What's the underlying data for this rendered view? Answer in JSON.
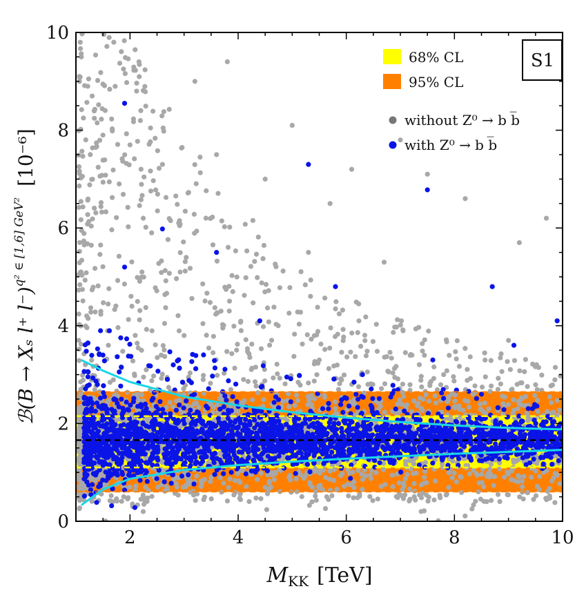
{
  "chart_data": {
    "type": "scatter",
    "title": "",
    "xlabel_main": "M",
    "xlabel_sub": "KK",
    "xlabel_unit": "[TeV]",
    "ylabel_text": "ℬ(B → Xₛ l⁺ l⁻)",
    "ylabel_sup": "q² ∈ [1,6] GeV²",
    "ylabel_scale": "[10⁻⁶]",
    "xlim": [
      1,
      10
    ],
    "ylim": [
      0,
      10
    ],
    "x_ticks": [
      2,
      4,
      6,
      8,
      10
    ],
    "y_ticks": [
      0,
      2,
      4,
      6,
      8,
      10
    ],
    "scenario_label": "S1",
    "central_value": 1.66,
    "cl68_band": [
      1.1,
      2.15
    ],
    "cl95_band": [
      0.6,
      2.65
    ],
    "legend": {
      "cl68": "68% CL",
      "cl95": "95% CL",
      "without": "without Z⁰ → b b̅",
      "with": "with Z⁰ → b b̅"
    },
    "series": [
      {
        "name": "without Z0 -> b bbar",
        "color": "#a8a8a8",
        "description": "gray scatter points",
        "sample_points": [
          [
            1.1,
            9.5
          ],
          [
            1.3,
            8.7
          ],
          [
            1.5,
            7.9
          ],
          [
            1.7,
            9.8
          ],
          [
            1.8,
            6.9
          ],
          [
            2.0,
            7.7
          ],
          [
            2.2,
            8.4
          ],
          [
            2.4,
            5.9
          ],
          [
            2.6,
            7.3
          ],
          [
            2.9,
            6.1
          ],
          [
            3.2,
            9.0
          ],
          [
            3.6,
            7.5
          ],
          [
            3.8,
            9.4
          ],
          [
            4.5,
            7.0
          ],
          [
            5.0,
            8.1
          ],
          [
            5.3,
            5.5
          ],
          [
            5.7,
            6.5
          ],
          [
            6.1,
            7.2
          ],
          [
            6.7,
            5.3
          ],
          [
            7.0,
            7.8
          ],
          [
            7.5,
            7.1
          ],
          [
            8.2,
            6.6
          ],
          [
            9.2,
            5.7
          ],
          [
            9.7,
            6.2
          ],
          [
            1.2,
            4.2
          ],
          [
            1.6,
            3.6
          ],
          [
            2.3,
            3.1
          ],
          [
            3.0,
            3.8
          ],
          [
            4.1,
            2.9
          ],
          [
            5.5,
            3.3
          ],
          [
            6.4,
            2.8
          ],
          [
            7.8,
            3.0
          ],
          [
            9.0,
            3.7
          ],
          [
            1.4,
            0.9
          ],
          [
            2.0,
            0.7
          ],
          [
            3.5,
            0.9
          ]
        ]
      },
      {
        "name": "with Z0 -> b bbar",
        "color": "#0a14e6",
        "description": "blue scatter points",
        "sample_points": [
          [
            1.9,
            8.55
          ],
          [
            5.3,
            7.3
          ],
          [
            7.5,
            6.78
          ],
          [
            2.6,
            5.98
          ],
          [
            3.6,
            5.5
          ],
          [
            1.9,
            5.2
          ],
          [
            5.8,
            4.8
          ],
          [
            8.7,
            4.8
          ],
          [
            4.4,
            4.1
          ],
          [
            9.1,
            3.6
          ],
          [
            9.9,
            4.1
          ],
          [
            1.5,
            3.4
          ],
          [
            2.8,
            3.2
          ],
          [
            4.9,
            2.95
          ],
          [
            6.3,
            3.0
          ],
          [
            7.6,
            3.3
          ],
          [
            8.5,
            2.6
          ],
          [
            3.9,
            2.55
          ],
          [
            1.3,
            1.6
          ],
          [
            2.5,
            1.5
          ],
          [
            3.3,
            1.7
          ],
          [
            4.6,
            1.6
          ],
          [
            5.9,
            1.55
          ],
          [
            7.2,
            1.7
          ],
          [
            8.8,
            1.5
          ],
          [
            9.6,
            1.3
          ],
          [
            1.6,
            0.95
          ],
          [
            2.7,
            1.0
          ],
          [
            4.3,
            1.2
          ],
          [
            6.5,
            1.3
          ]
        ]
      }
    ],
    "envelope_curves": {
      "color": "#19d7e6",
      "upper": [
        [
          1.1,
          3.3
        ],
        [
          1.5,
          3.08
        ],
        [
          2.0,
          2.85
        ],
        [
          3.0,
          2.55
        ],
        [
          4.0,
          2.37
        ],
        [
          5.0,
          2.23
        ],
        [
          6.0,
          2.12
        ],
        [
          7.0,
          2.03
        ],
        [
          8.0,
          1.96
        ],
        [
          9.0,
          1.91
        ],
        [
          10.0,
          1.88
        ]
      ],
      "lower": [
        [
          1.1,
          0.33
        ],
        [
          1.5,
          0.65
        ],
        [
          2.0,
          0.87
        ],
        [
          3.0,
          1.05
        ],
        [
          4.0,
          1.15
        ],
        [
          5.0,
          1.22
        ],
        [
          6.0,
          1.28
        ],
        [
          7.0,
          1.33
        ],
        [
          8.0,
          1.38
        ],
        [
          9.0,
          1.42
        ],
        [
          10.0,
          1.46
        ]
      ]
    }
  }
}
